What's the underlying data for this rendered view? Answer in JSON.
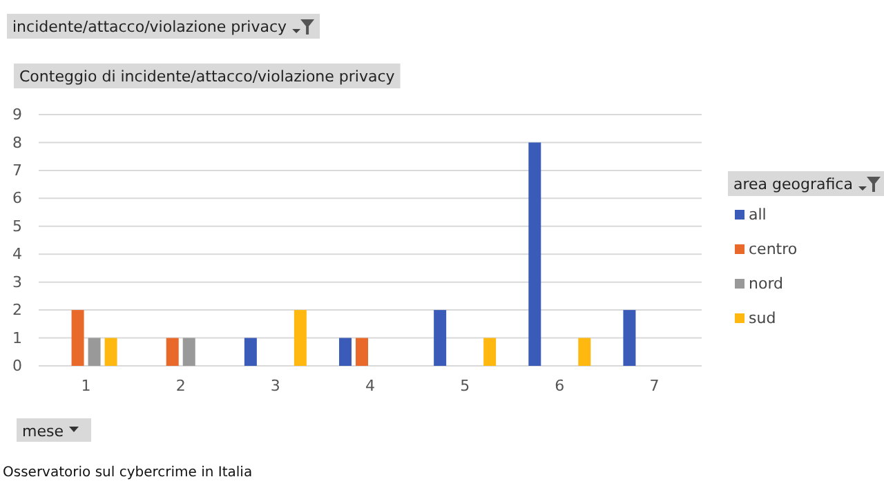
{
  "chart_data": {
    "type": "bar",
    "title": "incidente/attacco/violazione privacy",
    "subtitle": "Conteggio di incidente/attacco/violazione privacy",
    "xlabel": "mese",
    "legend_title": "area geografica",
    "categories": [
      "1",
      "2",
      "3",
      "4",
      "5",
      "6",
      "7"
    ],
    "series": [
      {
        "name": "all",
        "color": "#3a5cb8",
        "values": [
          null,
          null,
          1,
          1,
          2,
          8,
          2
        ]
      },
      {
        "name": "centro",
        "color": "#e8692a",
        "values": [
          2,
          1,
          null,
          1,
          null,
          null,
          null
        ]
      },
      {
        "name": "nord",
        "color": "#999999",
        "values": [
          1,
          1,
          null,
          null,
          null,
          null,
          null
        ]
      },
      {
        "name": "sud",
        "color": "#ffb80f",
        "values": [
          1,
          null,
          2,
          null,
          1,
          1,
          null
        ]
      }
    ],
    "ylim": [
      0,
      9
    ],
    "yticks": [
      0,
      1,
      2,
      3,
      4,
      5,
      6,
      7,
      8,
      9
    ],
    "grid": "y",
    "legend": "right",
    "annotations": [
      "Osservatorio sul cybercrime in Italia"
    ]
  }
}
